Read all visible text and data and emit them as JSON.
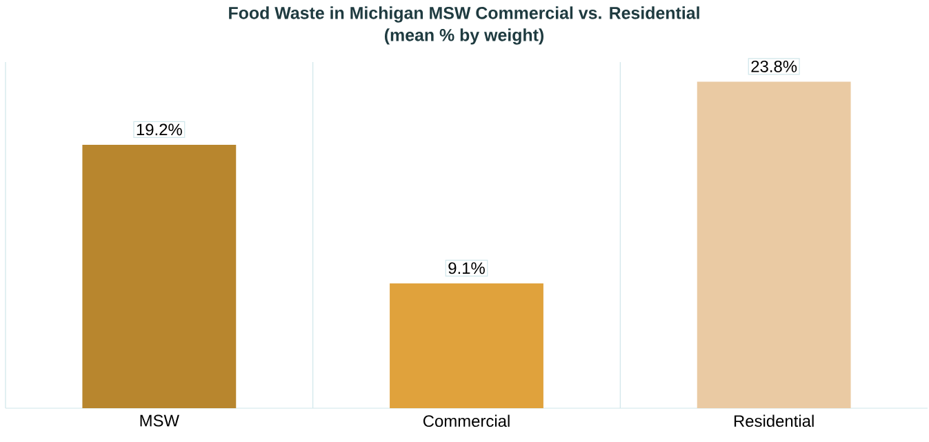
{
  "chart_data": {
    "type": "bar",
    "title": "Food Waste in Michigan MSW Commercial vs. Residential",
    "subtitle": "(mean % by weight)",
    "categories": [
      "MSW",
      "Commercial",
      "Residential"
    ],
    "values": [
      19.2,
      9.1,
      23.8
    ],
    "colors": [
      "#b8862e",
      "#e0a23c",
      "#eacaa3"
    ],
    "value_labels": [
      "19.2%",
      "9.1%",
      "23.8%"
    ],
    "grid": "x"
  }
}
